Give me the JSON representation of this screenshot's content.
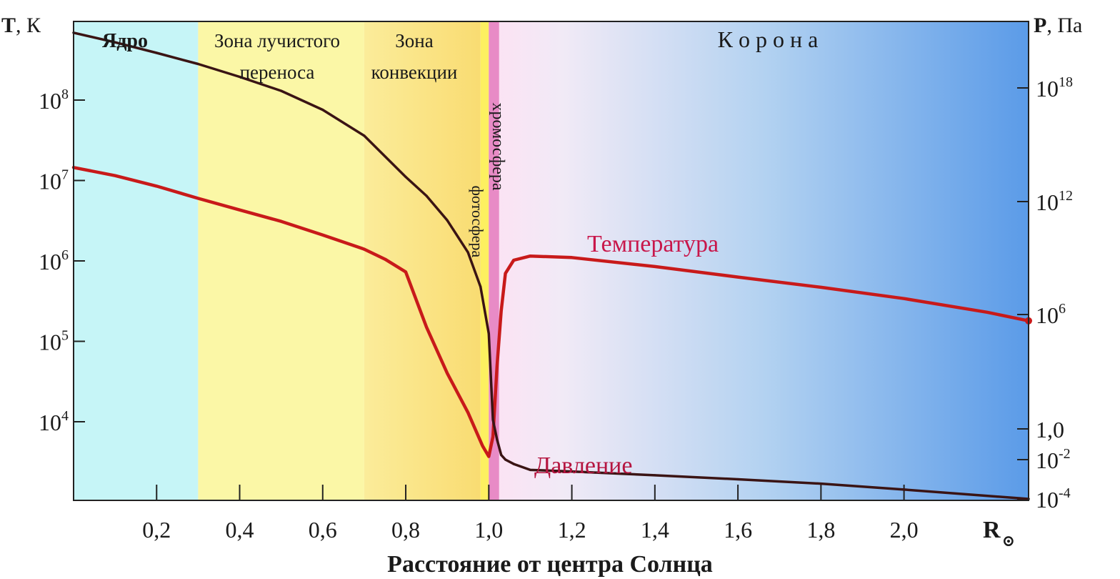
{
  "chart_data": {
    "type": "line",
    "title": "",
    "xlabel": "Расстояние от центра Солнца",
    "x_unit_label": "R",
    "x_unit_symbol": "⊙",
    "xlim": [
      0.0,
      2.3
    ],
    "x_ticks": [
      "0,2",
      "0,4",
      "0,6",
      "0,8",
      "1,0",
      "1,2",
      "1,4",
      "1,6",
      "1,8",
      "2,0"
    ],
    "left_axis": {
      "label_main": "T",
      "label_unit": ", К",
      "scale": "log",
      "ticks": [
        {
          "base": "10",
          "exp": "8",
          "value": 100000000
        },
        {
          "base": "10",
          "exp": "7",
          "value": 10000000
        },
        {
          "base": "10",
          "exp": "6",
          "value": 1000000
        },
        {
          "base": "10",
          "exp": "5",
          "value": 100000
        },
        {
          "base": "10",
          "exp": "4",
          "value": 10000
        }
      ]
    },
    "right_axis": {
      "label_main": "P",
      "label_unit": ", Па",
      "scale": "log",
      "ticks": [
        {
          "base": "10",
          "exp": "18",
          "value": 1e+18
        },
        {
          "base": "10",
          "exp": "12",
          "value": 1000000000000.0
        },
        {
          "base": "10",
          "exp": "6",
          "value": 1000000.0
        },
        {
          "base": "1,0",
          "exp": "",
          "value": 1
        },
        {
          "base": "10",
          "exp": "-2",
          "value": 0.01
        },
        {
          "base": "10",
          "exp": "-4",
          "value": 0.0001
        }
      ]
    },
    "regions": [
      {
        "label": [
          "Ядро"
        ],
        "bold": true,
        "from": 0.0,
        "to": 0.3,
        "color": "#c6f5f7"
      },
      {
        "label": [
          "Зона лучистого",
          "переноса"
        ],
        "from": 0.3,
        "to": 0.7,
        "color": "#fbf7a6"
      },
      {
        "label": [
          "Зона",
          "конвекции"
        ],
        "from": 0.7,
        "to": 0.98,
        "color": "#fbe68a"
      },
      {
        "label": [
          "фотосфера"
        ],
        "vertical": true,
        "from": 0.98,
        "to": 1.0,
        "color": "#fdf060"
      },
      {
        "label": [
          "хромосфера"
        ],
        "vertical": true,
        "from": 1.0,
        "to": 1.025,
        "color": "#e88bc6"
      },
      {
        "label": [
          "К о р о н а"
        ],
        "from": 1.025,
        "to": 2.3,
        "color": "#5b9be8"
      }
    ],
    "series": [
      {
        "name": "Температура",
        "axis": "left",
        "color": "#c81a1a",
        "x": [
          0.0,
          0.1,
          0.2,
          0.3,
          0.4,
          0.5,
          0.6,
          0.7,
          0.75,
          0.8,
          0.85,
          0.9,
          0.95,
          0.985,
          1.0,
          1.01,
          1.02,
          1.03,
          1.04,
          1.06,
          1.1,
          1.2,
          1.4,
          1.6,
          1.8,
          2.0,
          2.2,
          2.3
        ],
        "y": [
          14500000,
          11500000,
          8500000,
          6000000,
          4300000,
          3100000,
          2100000,
          1400000,
          1050000,
          730000,
          150000,
          40000,
          13000,
          5000,
          3700,
          6500,
          50000,
          240000,
          700000,
          1020000,
          1150000,
          1100000,
          850000,
          630000,
          470000,
          340000,
          230000,
          180000
        ]
      },
      {
        "name": "Давление",
        "axis": "right",
        "color": "#3a1414",
        "x": [
          0.0,
          0.1,
          0.2,
          0.3,
          0.4,
          0.5,
          0.6,
          0.7,
          0.8,
          0.85,
          0.9,
          0.95,
          0.98,
          1.0,
          1.01,
          1.02,
          1.03,
          1.04,
          1.06,
          1.1,
          1.2,
          1.4,
          1.6,
          1.8,
          2.0,
          2.3
        ],
        "y": [
          1e+21,
          3e+20,
          8e+19,
          2e+19,
          4e+18,
          7e+17,
          7e+16,
          3000000000000000.0,
          20000000000000.0,
          2000000000000.0,
          100000000000.0,
          2000000000.0,
          30000000.0,
          100000.0,
          3,
          0.2,
          0.02,
          0.01,
          0.006,
          0.003,
          0.0025,
          0.0016,
          0.001,
          0.0006,
          0.0003,
          0.0001
        ]
      }
    ],
    "series_labels": {
      "temperature": "Температура",
      "pressure": "Давление"
    }
  }
}
